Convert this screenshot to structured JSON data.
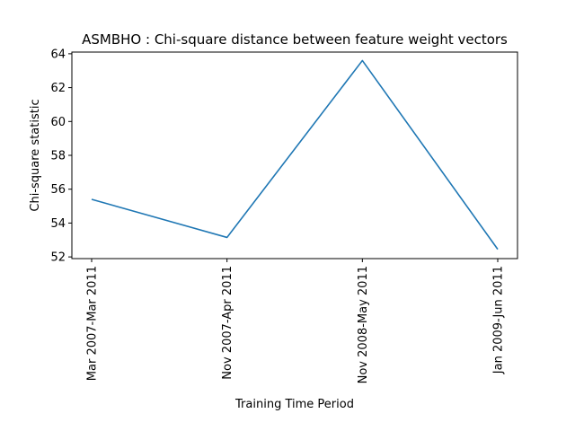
{
  "chart_data": {
    "type": "line",
    "title": "ASMBHO : Chi-square distance between feature weight vectors",
    "xlabel": "Training Time Period",
    "ylabel": "Chi-square statistic",
    "categories": [
      "Mar 2007-Mar 2011",
      "Nov 2007-Apr 2011",
      "Nov 2008-May 2011",
      "Jan 2009-Jun 2011"
    ],
    "series": [
      {
        "values": [
          55.4,
          53.15,
          63.6,
          52.45
        ],
        "color": "#1f77b4"
      }
    ],
    "ylim": [
      51.9,
      64.1
    ],
    "yticks": [
      52,
      54,
      56,
      58,
      60,
      62,
      64
    ],
    "grid": false,
    "legend": "none"
  }
}
